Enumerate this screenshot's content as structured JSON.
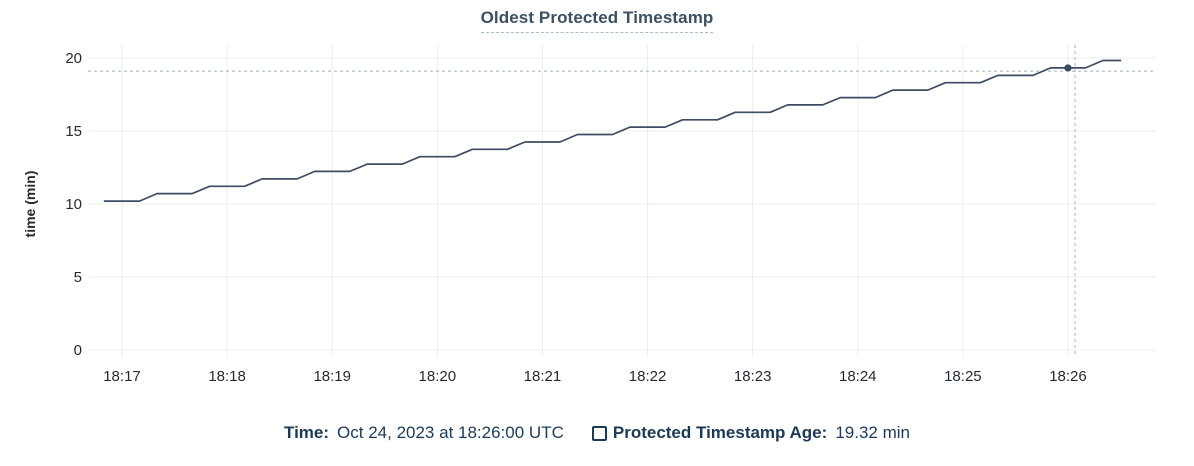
{
  "legend": {
    "time_label": "Time:",
    "time_value": "Oct 24, 2023 at 18:26:00 UTC",
    "series_label": "Protected Timestamp Age:",
    "series_value": "19.32 min",
    "series_checkbox_icon": "empty-square-checkbox"
  },
  "chart_data": {
    "type": "line",
    "title": "Oldest Protected Timestamp",
    "xlabel": "",
    "ylabel": "time (min)",
    "x_ticks": [
      "18:17",
      "18:18",
      "18:19",
      "18:20",
      "18:21",
      "18:22",
      "18:23",
      "18:24",
      "18:25",
      "18:26"
    ],
    "y_ticks": [
      0,
      5,
      10,
      15,
      20
    ],
    "ylim": [
      0,
      20
    ],
    "x_range": [
      "18:16:41",
      "18:26:50"
    ],
    "grid": true,
    "legend_position": "bottom",
    "colors": {
      "line": "#3d4b63",
      "grid": "#ededed",
      "tick_label": "#242a35",
      "crosshair": "#9db1c1",
      "title": "#3c5063",
      "legend_text": "#1b3a57",
      "background": "#ffffff"
    },
    "series": [
      {
        "name": "Protected Timestamp Age",
        "points": [
          [
            "18:16:50",
            10.2
          ],
          [
            "18:17:00",
            10.2
          ],
          [
            "18:17:10",
            10.2
          ],
          [
            "18:17:20",
            10.71
          ],
          [
            "18:17:30",
            10.71
          ],
          [
            "18:17:40",
            10.71
          ],
          [
            "18:17:50",
            11.21
          ],
          [
            "18:18:00",
            11.21
          ],
          [
            "18:18:10",
            11.21
          ],
          [
            "18:18:20",
            11.72
          ],
          [
            "18:18:30",
            11.72
          ],
          [
            "18:18:40",
            11.72
          ],
          [
            "18:18:50",
            12.23
          ],
          [
            "18:19:00",
            12.23
          ],
          [
            "18:19:10",
            12.23
          ],
          [
            "18:19:20",
            12.73
          ],
          [
            "18:19:30",
            12.73
          ],
          [
            "18:19:40",
            12.73
          ],
          [
            "18:19:50",
            13.24
          ],
          [
            "18:20:00",
            13.24
          ],
          [
            "18:20:10",
            13.24
          ],
          [
            "18:20:20",
            13.75
          ],
          [
            "18:20:30",
            13.75
          ],
          [
            "18:20:40",
            13.75
          ],
          [
            "18:20:50",
            14.25
          ],
          [
            "18:21:00",
            14.25
          ],
          [
            "18:21:10",
            14.25
          ],
          [
            "18:21:20",
            14.76
          ],
          [
            "18:21:30",
            14.76
          ],
          [
            "18:21:40",
            14.76
          ],
          [
            "18:21:50",
            15.27
          ],
          [
            "18:22:00",
            15.27
          ],
          [
            "18:22:10",
            15.27
          ],
          [
            "18:22:20",
            15.77
          ],
          [
            "18:22:30",
            15.77
          ],
          [
            "18:22:40",
            15.77
          ],
          [
            "18:22:50",
            16.28
          ],
          [
            "18:23:00",
            16.28
          ],
          [
            "18:23:10",
            16.28
          ],
          [
            "18:23:20",
            16.79
          ],
          [
            "18:23:30",
            16.79
          ],
          [
            "18:23:40",
            16.79
          ],
          [
            "18:23:50",
            17.29
          ],
          [
            "18:24:00",
            17.29
          ],
          [
            "18:24:10",
            17.29
          ],
          [
            "18:24:20",
            17.8
          ],
          [
            "18:24:30",
            17.8
          ],
          [
            "18:24:40",
            17.8
          ],
          [
            "18:24:50",
            18.31
          ],
          [
            "18:25:00",
            18.31
          ],
          [
            "18:25:10",
            18.31
          ],
          [
            "18:25:20",
            18.81
          ],
          [
            "18:25:30",
            18.81
          ],
          [
            "18:25:40",
            18.81
          ],
          [
            "18:25:50",
            19.32
          ],
          [
            "18:26:00",
            19.32
          ],
          [
            "18:26:10",
            19.32
          ],
          [
            "18:26:20",
            19.83
          ],
          [
            "18:26:30",
            19.83
          ]
        ]
      }
    ],
    "hover_point": {
      "time": "18:26:00",
      "value": 19.32
    },
    "crosshair": {
      "time": "18:26:04",
      "value": 19.1
    }
  }
}
